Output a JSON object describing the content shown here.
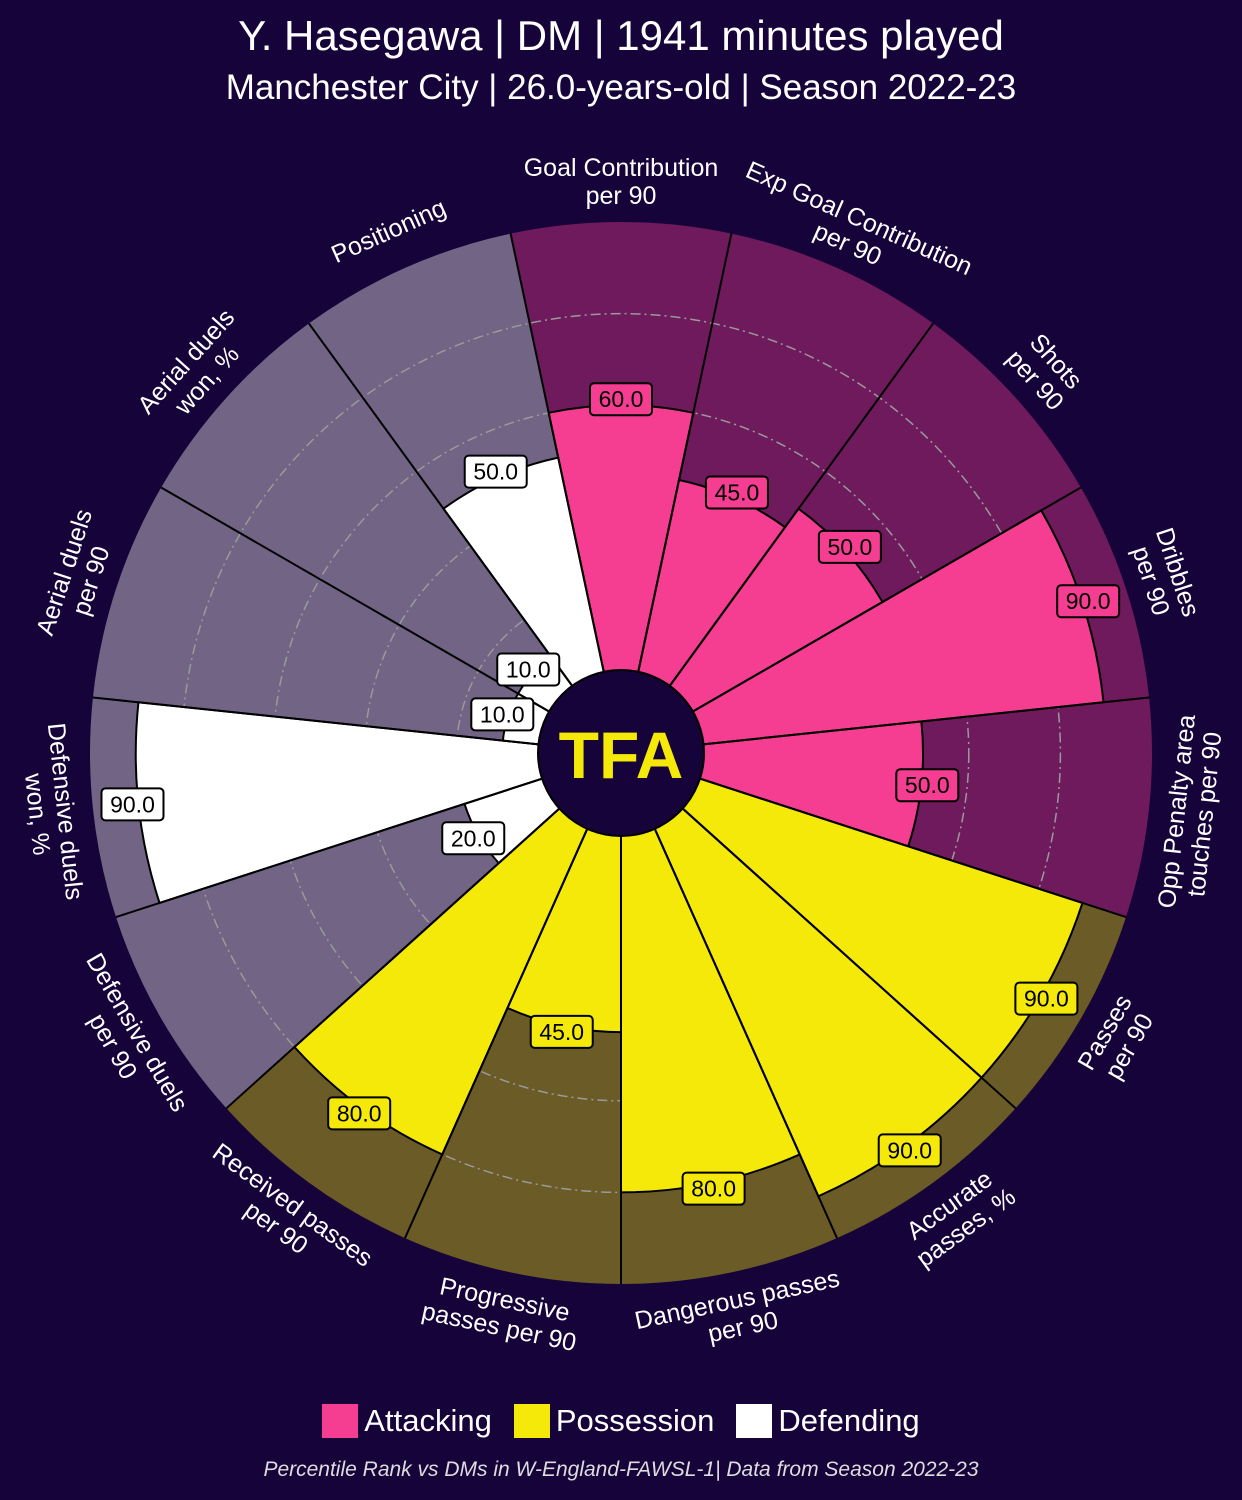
{
  "title": "Y. Hasegawa | DM | 1941 minutes played",
  "subtitle": "Manchester City | 26.0-years-old | Season 2022-23",
  "logo_text": "TFA",
  "footer": "Percentile Rank vs DMs in W-England-FAWSL-1| Data from Season 2022-23",
  "colors": {
    "background": "#16033a",
    "Attacking": {
      "bar": "#f53d92",
      "slice": "#6e1a5d"
    },
    "Possession": {
      "bar": "#f5e90a",
      "slice": "#6b5b26"
    },
    "Defending": {
      "bar": "#ffffff",
      "slice": "#716485"
    },
    "logo": "#f5e90a"
  },
  "legend": [
    "Attacking",
    "Possession",
    "Defending"
  ],
  "chart_data": {
    "type": "pizza",
    "range": [
      0,
      100
    ],
    "rings": [
      20,
      40,
      60,
      80
    ],
    "params": [
      {
        "label": "Goal Contribution\nper 90",
        "value": 60.0,
        "group": "Attacking"
      },
      {
        "label": "Exp Goal Contribution\nper 90",
        "value": 45.0,
        "group": "Attacking"
      },
      {
        "label": "Shots\nper 90",
        "value": 50.0,
        "group": "Attacking"
      },
      {
        "label": "Dribbles\nper 90",
        "value": 90.0,
        "group": "Attacking"
      },
      {
        "label": "Opp Penalty area\ntouches per 90",
        "value": 50.0,
        "group": "Attacking"
      },
      {
        "label": "Passes\nper 90",
        "value": 90.0,
        "group": "Possession"
      },
      {
        "label": "Accurate\npasses, %",
        "value": 90.0,
        "group": "Possession"
      },
      {
        "label": "Dangerous passes\nper 90",
        "value": 80.0,
        "group": "Possession"
      },
      {
        "label": "Progressive\npasses per 90",
        "value": 45.0,
        "group": "Possession"
      },
      {
        "label": "Received passes\nper 90",
        "value": 80.0,
        "group": "Possession"
      },
      {
        "label": "Defensive duels\nper 90",
        "value": 20.0,
        "group": "Defending"
      },
      {
        "label": "Defensive duels\nwon, %",
        "value": 90.0,
        "group": "Defending"
      },
      {
        "label": "Aerial duels\nper 90",
        "value": 10.0,
        "group": "Defending"
      },
      {
        "label": "Aerial duels\nwon, %",
        "value": 10.0,
        "group": "Defending"
      },
      {
        "label": "Positioning",
        "value": 50.0,
        "group": "Defending"
      }
    ]
  }
}
